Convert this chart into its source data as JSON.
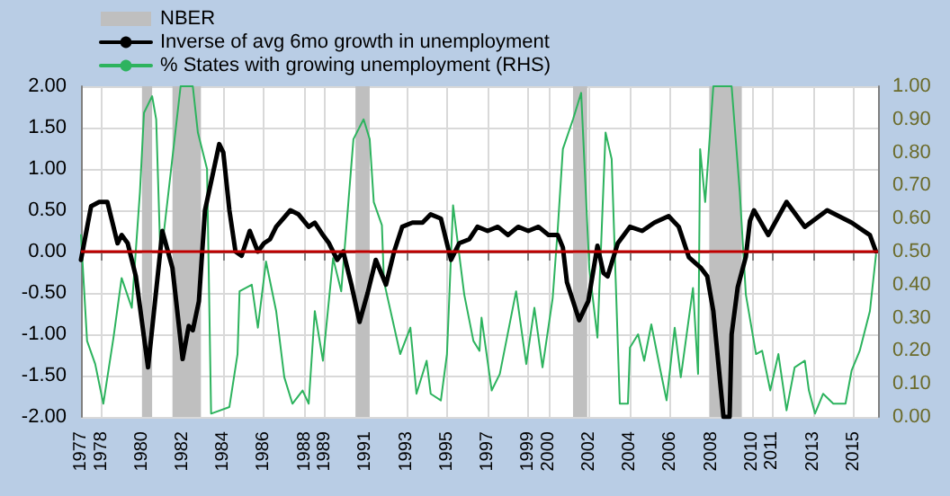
{
  "chart_data": {
    "type": "line",
    "xlim": [
      1977,
      2016.2
    ],
    "xticks": [
      1977,
      1978,
      1980,
      1982,
      1984,
      1986,
      1988,
      1989,
      1991,
      1993,
      1995,
      1997,
      1999,
      2000,
      2002,
      2004,
      2006,
      2008,
      2010,
      2011,
      2013,
      2015
    ],
    "ylim": [
      -2,
      2
    ],
    "yticks": [
      {
        "value": -2,
        "label": "-2.00"
      },
      {
        "value": -1.5,
        "label": "-1.50"
      },
      {
        "value": -1,
        "label": "-1.00"
      },
      {
        "value": -0.5,
        "label": "-0.50"
      },
      {
        "value": 0,
        "label": "0.00"
      },
      {
        "value": 0.5,
        "label": "0.50"
      },
      {
        "value": 1,
        "label": "1.00"
      },
      {
        "value": 1.5,
        "label": "1.50"
      },
      {
        "value": 2,
        "label": "2.00"
      }
    ],
    "y2lim": [
      0,
      1
    ],
    "y2ticks": [
      {
        "value": 0,
        "label": "0.00"
      },
      {
        "value": 0.1,
        "label": "0.10"
      },
      {
        "value": 0.2,
        "label": "0.20"
      },
      {
        "value": 0.3,
        "label": "0.30"
      },
      {
        "value": 0.4,
        "label": "0.40"
      },
      {
        "value": 0.5,
        "label": "0.50"
      },
      {
        "value": 0.6,
        "label": "0.60"
      },
      {
        "value": 0.7,
        "label": "0.70"
      },
      {
        "value": 0.8,
        "label": "0.80"
      },
      {
        "value": 0.9,
        "label": "0.90"
      },
      {
        "value": 1,
        "label": "1.00"
      }
    ],
    "grid": true,
    "legend": "top left",
    "marker": "none",
    "line_style": "solid",
    "bands": [
      {
        "axis": "x",
        "from": 1980.0,
        "to": 1980.5,
        "label": "NBER",
        "color": "#bfbfbf"
      },
      {
        "axis": "x",
        "from": 1981.5,
        "to": 1982.9,
        "color": "#bfbfbf"
      },
      {
        "axis": "x",
        "from": 1990.5,
        "to": 1991.2,
        "color": "#bfbfbf"
      },
      {
        "axis": "x",
        "from": 2001.2,
        "to": 2001.9,
        "color": "#bfbfbf"
      },
      {
        "axis": "x",
        "from": 2007.9,
        "to": 2009.5,
        "color": "#bfbfbf"
      }
    ],
    "ref_lines": [
      {
        "axis": "y",
        "value": 0,
        "color": "#c00000",
        "line_style": "solid"
      }
    ],
    "series": [
      {
        "name": "Inverse of avg 6mo growth in unemployment",
        "color": "#000000",
        "x": [
          1977,
          1977.5,
          1977.9,
          1978.3,
          1978.8,
          1979.0,
          1979.3,
          1979.7,
          1980.3,
          1980.9,
          1981.0,
          1981.5,
          1982.0,
          1982.3,
          1982.5,
          1982.8,
          1983.1,
          1983.8,
          1984.0,
          1984.3,
          1984.6,
          1984.9,
          1985.1,
          1985.3,
          1985.7,
          1986.0,
          1986.3,
          1986.6,
          1987.3,
          1987.7,
          1988.2,
          1988.5,
          1988.9,
          1989.2,
          1989.6,
          1989.9,
          1990.3,
          1990.7,
          1991.1,
          1991.5,
          1992.0,
          1992.4,
          1992.8,
          1993.3,
          1993.8,
          1994.2,
          1994.7,
          1995.0,
          1995.2,
          1995.6,
          1996.1,
          1996.5,
          1997.0,
          1997.5,
          1998.0,
          1998.5,
          1999.0,
          1999.5,
          2000.0,
          2000.45,
          2000.7,
          2000.9,
          2001.5,
          2001.95,
          2002.4,
          2002.7,
          2002.9,
          2003.4,
          2004.0,
          2004.6,
          2005.2,
          2005.9,
          2006.4,
          2006.9,
          2007.5,
          2007.8,
          2008.1,
          2008.6,
          2008.9,
          2009.0,
          2009.3,
          2009.7,
          2009.9,
          2010.1,
          2010.8,
          2011.7,
          2012.6,
          2013.7,
          2014.9,
          2015.8,
          2016.1
        ],
        "values": [
          -0.1,
          0.55,
          0.6,
          0.6,
          0.1,
          0.2,
          0.1,
          -0.3,
          -1.4,
          0.0,
          0.25,
          -0.2,
          -1.3,
          -0.9,
          -0.95,
          -0.6,
          0.5,
          1.3,
          1.2,
          0.5,
          0.0,
          -0.05,
          0.1,
          0.25,
          0.0,
          0.1,
          0.15,
          0.3,
          0.5,
          0.45,
          0.3,
          0.35,
          0.2,
          0.1,
          -0.1,
          0.0,
          -0.4,
          -0.85,
          -0.5,
          -0.1,
          -0.4,
          0.0,
          0.3,
          0.35,
          0.35,
          0.45,
          0.4,
          0.1,
          -0.1,
          0.1,
          0.15,
          0.3,
          0.25,
          0.3,
          0.2,
          0.3,
          0.25,
          0.3,
          0.2,
          0.2,
          0.05,
          -0.37,
          -0.83,
          -0.6,
          0.07,
          -0.26,
          -0.3,
          0.1,
          0.3,
          0.25,
          0.35,
          0.43,
          0.3,
          -0.07,
          -0.2,
          -0.3,
          -0.72,
          -2.0,
          -2.0,
          -1.0,
          -0.43,
          -0.06,
          0.37,
          0.5,
          0.2,
          0.6,
          0.3,
          0.5,
          0.35,
          0.2,
          0.0
        ]
      },
      {
        "name": "% States with growing unemployment (RHS)",
        "color": "#2db35e",
        "axis": "y2",
        "x": [
          1977,
          1977.3,
          1977.7,
          1978.1,
          1978.6,
          1979.0,
          1979.5,
          1979.9,
          1980.1,
          1980.5,
          1980.7,
          1980.9,
          1981.1,
          1981.9,
          1982.5,
          1982.75,
          1983.2,
          1983.4,
          1984.3,
          1984.7,
          1984.8,
          1985.4,
          1985.7,
          1986.1,
          1986.6,
          1987.0,
          1987.4,
          1987.9,
          1988.2,
          1988.5,
          1988.9,
          1989.4,
          1989.8,
          1990.4,
          1990.9,
          1991.2,
          1991.4,
          1991.8,
          1991.9,
          1992.7,
          1993.2,
          1993.5,
          1994.0,
          1994.2,
          1994.7,
          1995.0,
          1995.3,
          1995.85,
          1996.3,
          1996.6,
          1996.7,
          1997.2,
          1997.6,
          1998.4,
          1998.9,
          1999.3,
          1999.7,
          2000.2,
          2000.45,
          2000.7,
          2001.2,
          2001.6,
          2002.0,
          2002.4,
          2002.8,
          2003.1,
          2003.5,
          2003.9,
          2004.0,
          2004.4,
          2004.7,
          2005.05,
          2005.5,
          2005.8,
          2006.2,
          2006.5,
          2007.1,
          2007.35,
          2007.45,
          2007.7,
          2008.1,
          2009.0,
          2009.4,
          2009.7,
          2010.2,
          2010.5,
          2010.9,
          2011.3,
          2011.7,
          2012.1,
          2012.6,
          2012.8,
          2013.1,
          2013.5,
          2014.0,
          2014.6,
          2014.9,
          2015.3,
          2015.8,
          2016.1
        ],
        "values": [
          0.55,
          0.23,
          0.16,
          0.04,
          0.24,
          0.42,
          0.33,
          0.68,
          0.92,
          0.97,
          0.9,
          0.5,
          0.57,
          1.0,
          1.0,
          0.86,
          0.75,
          0.01,
          0.03,
          0.19,
          0.38,
          0.4,
          0.27,
          0.47,
          0.32,
          0.12,
          0.04,
          0.08,
          0.04,
          0.32,
          0.17,
          0.48,
          0.38,
          0.84,
          0.9,
          0.84,
          0.65,
          0.58,
          0.41,
          0.19,
          0.27,
          0.07,
          0.17,
          0.07,
          0.05,
          0.19,
          0.64,
          0.37,
          0.23,
          0.2,
          0.3,
          0.08,
          0.13,
          0.38,
          0.16,
          0.33,
          0.15,
          0.36,
          0.57,
          0.81,
          0.9,
          0.98,
          0.45,
          0.24,
          0.86,
          0.78,
          0.04,
          0.04,
          0.21,
          0.25,
          0.17,
          0.28,
          0.14,
          0.05,
          0.27,
          0.12,
          0.39,
          0.13,
          0.81,
          0.65,
          1.0,
          1.0,
          0.68,
          0.37,
          0.19,
          0.2,
          0.08,
          0.19,
          0.02,
          0.15,
          0.17,
          0.08,
          0.01,
          0.07,
          0.04,
          0.04,
          0.14,
          0.2,
          0.32,
          0.49
        ]
      }
    ]
  }
}
